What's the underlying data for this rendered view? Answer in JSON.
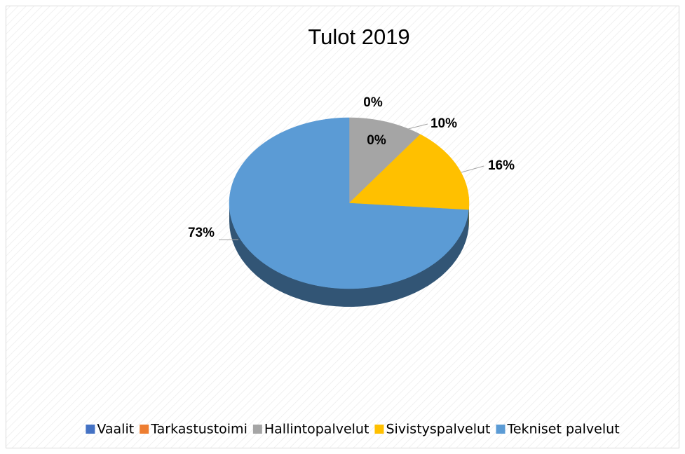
{
  "chart_data": {
    "type": "pie",
    "title": "Tulot 2019",
    "categories": [
      "Vaalit",
      "Tarkastustoimi",
      "Hallintopalvelut",
      "Sivistyspalvelut",
      "Tekniset palvelut"
    ],
    "values": [
      0,
      0,
      10,
      16,
      73
    ],
    "value_labels": [
      "0%",
      "0%",
      "10%",
      "16%",
      "73%"
    ],
    "colors": [
      "#4472c4",
      "#ed7d31",
      "#a5a5a5",
      "#ffc000",
      "#5b9bd5"
    ],
    "legend": "bottom"
  }
}
